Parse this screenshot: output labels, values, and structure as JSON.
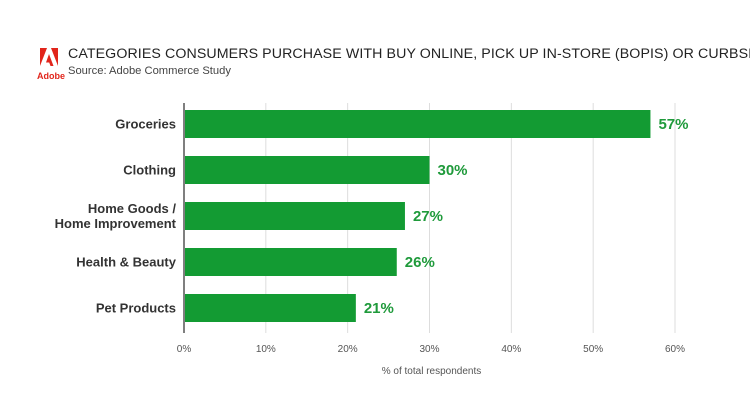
{
  "header": {
    "brand": "Adobe",
    "title": "CATEGORIES CONSUMERS PURCHASE WITH BUY ONLINE, PICK UP IN-STORE (BOPIS) OR CURBSIDE",
    "source": "Source: Adobe Commerce Study"
  },
  "colors": {
    "bar": "#139b33",
    "value_label": "#1f9a3b",
    "brand": "#e1251b",
    "grid": "#dddddd",
    "axis": "#555555"
  },
  "chart_data": {
    "type": "bar",
    "orientation": "horizontal",
    "categories": [
      [
        "Groceries"
      ],
      [
        "Clothing"
      ],
      [
        "Home Goods /",
        "Home Improvement"
      ],
      [
        "Health & Beauty"
      ],
      [
        "Pet Products"
      ]
    ],
    "values": [
      57,
      30,
      27,
      26,
      21
    ],
    "value_labels": [
      "57%",
      "30%",
      "27%",
      "26%",
      "21%"
    ],
    "xlim": [
      0,
      60
    ],
    "xticks": [
      0,
      10,
      20,
      30,
      40,
      50,
      60
    ],
    "xtick_labels": [
      "0%",
      "10%",
      "20%",
      "30%",
      "40%",
      "50%",
      "60%"
    ],
    "xlabel": "% of total respondents",
    "grid": "vertical"
  }
}
